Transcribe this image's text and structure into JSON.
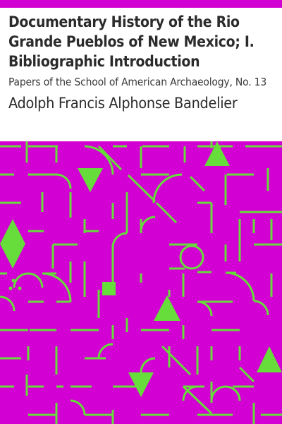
{
  "book": {
    "title": "Documentary History of the Rio Grande Pueblos of New Mexico; I. Bibliographic Introduction",
    "series": "Papers of the School of American Archaeology, No. 13",
    "author": "Adolph Francis Alphonse Bandelier"
  },
  "colors": {
    "background": "#d200d2",
    "pattern": "#66dd3a"
  }
}
